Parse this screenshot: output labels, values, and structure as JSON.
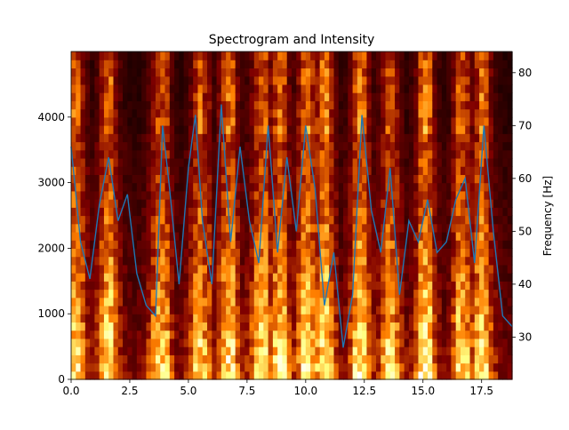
{
  "chart_data": {
    "type": "spectrogram-with-line",
    "title": "Spectrogram and Intensity",
    "xlabel": "",
    "ylabel_left": "",
    "ylabel_right": "Frequency [Hz]",
    "x_range": [
      0,
      18.8
    ],
    "y_left_range": [
      0,
      5000
    ],
    "y_right_range": [
      22,
      84
    ],
    "x_ticks": [
      "0.0",
      "2.5",
      "5.0",
      "7.5",
      "10.0",
      "12.5",
      "15.0",
      "17.5"
    ],
    "x_tick_values": [
      0,
      2.5,
      5,
      7.5,
      10,
      12.5,
      15,
      17.5
    ],
    "y_left_ticks": [
      "0",
      "1000",
      "2000",
      "3000",
      "4000"
    ],
    "y_left_tick_values": [
      0,
      1000,
      2000,
      3000,
      4000
    ],
    "y_right_ticks": [
      "30",
      "40",
      "50",
      "60",
      "70",
      "80"
    ],
    "y_right_tick_values": [
      30,
      40,
      50,
      60,
      70,
      80
    ],
    "spectrogram": {
      "colormap": "afmhot",
      "time_bins": 94,
      "freq_bins": 40,
      "bright_bursts_time": [
        0.2,
        1.6,
        3.8,
        5.5,
        6.7,
        8.1,
        8.9,
        10.0,
        10.8,
        12.3,
        13.6,
        15.1,
        16.7,
        17.5
      ]
    },
    "series": [
      {
        "color": "#1f77b4",
        "x": [
          0.0,
          0.4,
          0.8,
          1.2,
          1.6,
          2.0,
          2.4,
          2.8,
          3.2,
          3.6,
          3.9,
          4.2,
          4.6,
          5.0,
          5.3,
          5.6,
          6.0,
          6.4,
          6.8,
          7.2,
          7.6,
          8.0,
          8.4,
          8.8,
          9.2,
          9.6,
          10.0,
          10.4,
          10.8,
          11.2,
          11.6,
          12.0,
          12.4,
          12.8,
          13.2,
          13.6,
          14.0,
          14.4,
          14.8,
          15.2,
          15.6,
          16.0,
          16.4,
          16.8,
          17.2,
          17.6,
          18.0,
          18.4,
          18.8
        ],
        "y": [
          66,
          48,
          41,
          55,
          64,
          52,
          57,
          42,
          36,
          34,
          70,
          58,
          40,
          62,
          72,
          52,
          40,
          74,
          48,
          66,
          52,
          44,
          70,
          46,
          64,
          50,
          70,
          58,
          36,
          46,
          28,
          38,
          72,
          54,
          46,
          62,
          38,
          52,
          48,
          56,
          46,
          48,
          56,
          60,
          44,
          70,
          50,
          34,
          32
        ]
      }
    ]
  }
}
